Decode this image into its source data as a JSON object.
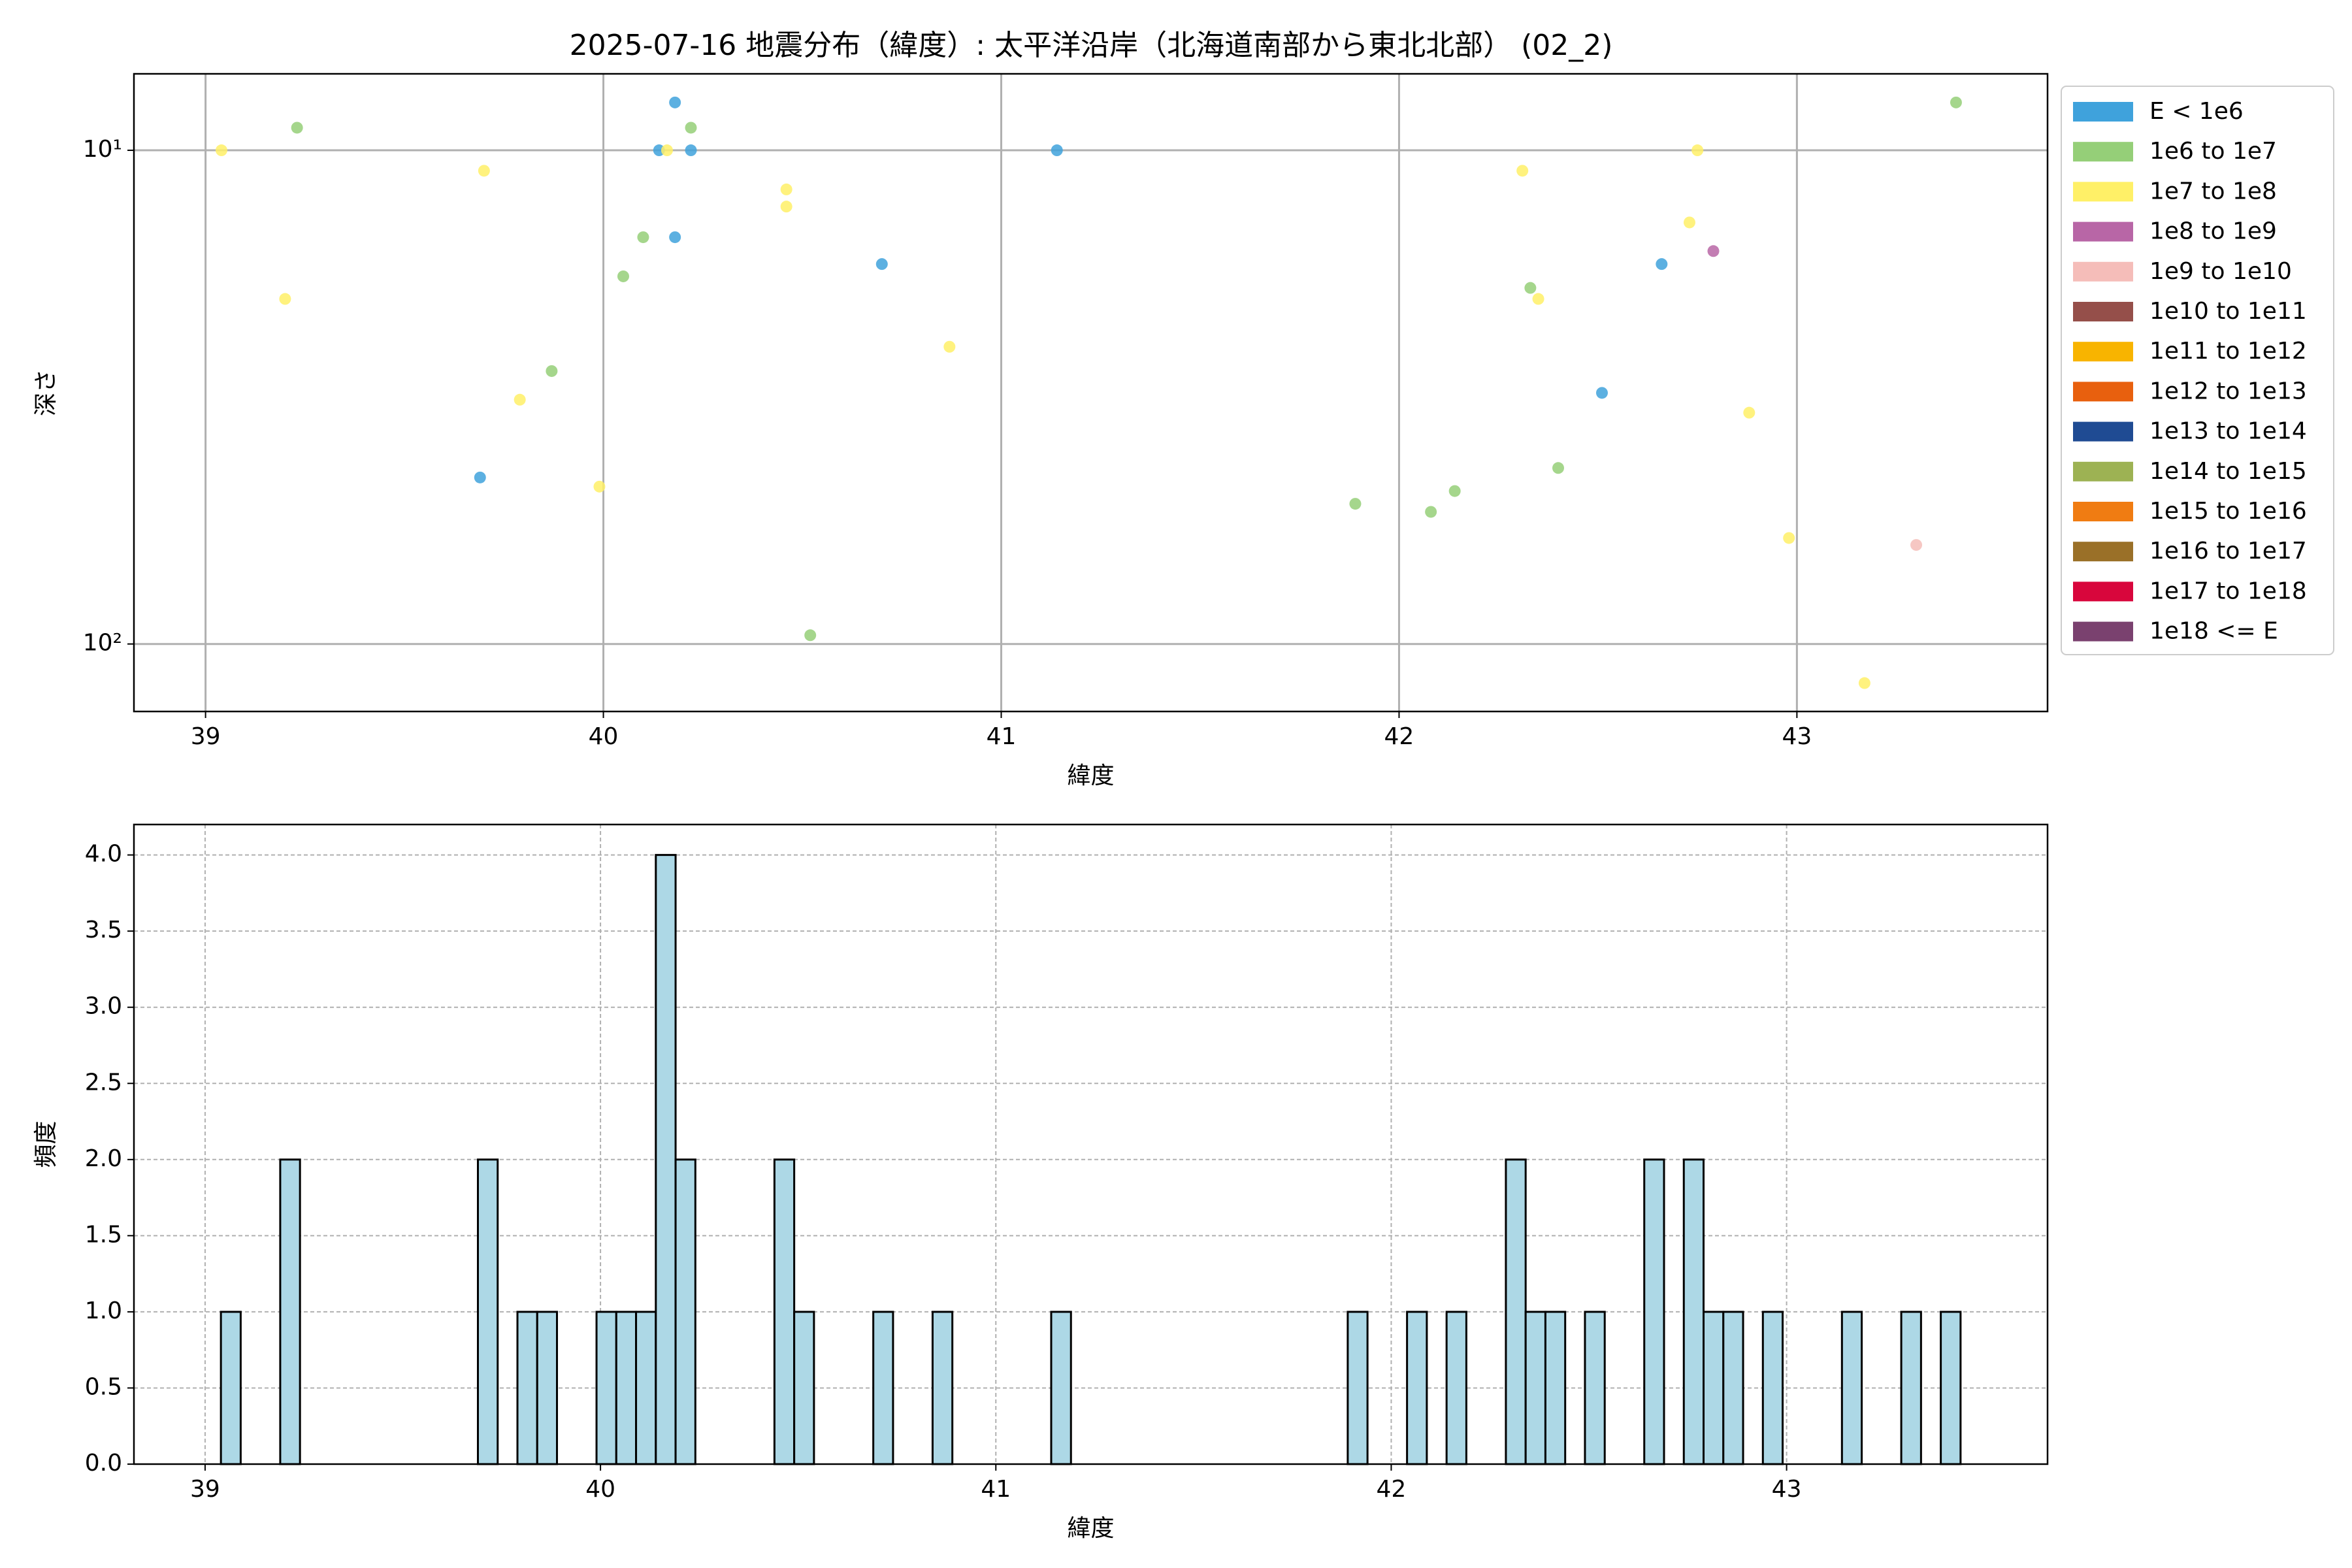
{
  "chart_data": [
    {
      "type": "scatter",
      "title": "2025-07-16 地震分布（緯度）: 太平洋沿岸（北海道南部から東北北部） (02_2)",
      "xlabel": "緯度",
      "ylabel": "深さ",
      "xlim": [
        38.82,
        43.63
      ],
      "xticks": [
        39,
        40,
        41,
        42,
        43
      ],
      "ylim": [
        7,
        137
      ],
      "yticks": [
        {
          "value": 10,
          "label": "10¹"
        },
        {
          "value": 100,
          "label": "10²"
        }
      ],
      "log_y": true,
      "y_inverted": true,
      "grid": true,
      "legend": "outside-right",
      "series": [
        {
          "name": "E < 1e6",
          "color": "#3fa2dc",
          "x": [
            40.18,
            40.14,
            40.22,
            40.18,
            40.7,
            41.14,
            39.69,
            42.66,
            42.51
          ],
          "values": [
            8,
            10,
            10,
            15,
            17,
            10,
            46,
            17,
            31
          ]
        },
        {
          "name": "1e6 to 1e7",
          "color": "#95cf78",
          "x": [
            39.23,
            40.22,
            40.1,
            40.05,
            39.87,
            40.52,
            43.4,
            42.33,
            41.89,
            42.08,
            42.14,
            42.4
          ],
          "values": [
            9,
            9,
            15,
            18,
            28,
            96,
            8,
            19,
            52,
            54,
            49,
            44
          ]
        },
        {
          "name": "1e7 to 1e8",
          "color": "#fff067",
          "x": [
            39.04,
            39.7,
            39.2,
            39.79,
            39.99,
            40.16,
            40.46,
            40.46,
            40.87,
            42.31,
            42.75,
            42.73,
            42.35,
            42.88,
            42.98,
            43.17
          ],
          "values": [
            10,
            11,
            20,
            32,
            48,
            10,
            12,
            13,
            25,
            11,
            10,
            14,
            20,
            34,
            61,
            120
          ]
        },
        {
          "name": "1e8 to 1e9",
          "color": "#b866a6",
          "x": [
            42.79
          ],
          "values": [
            16
          ]
        },
        {
          "name": "1e9 to 1e10",
          "color": "#f5bdb9",
          "x": [
            43.3
          ],
          "values": [
            63
          ]
        },
        {
          "name": "1e10 to 1e11",
          "color": "#954f4a",
          "x": [],
          "values": []
        },
        {
          "name": "1e11 to 1e12",
          "color": "#f8b400",
          "x": [],
          "values": []
        },
        {
          "name": "1e12 to 1e13",
          "color": "#e8600e",
          "x": [],
          "values": []
        },
        {
          "name": "1e13 to 1e14",
          "color": "#1f4b93",
          "x": [],
          "values": []
        },
        {
          "name": "1e14 to 1e15",
          "color": "#9db253",
          "x": [],
          "values": []
        },
        {
          "name": "1e15 to 1e16",
          "color": "#f07c12",
          "x": [],
          "values": []
        },
        {
          "name": "1e16 to 1e17",
          "color": "#9a7028",
          "x": [],
          "values": []
        },
        {
          "name": "1e17 to 1e18",
          "color": "#d8063c",
          "x": [],
          "values": []
        },
        {
          "name": "1e18 <= E",
          "color": "#7a416f",
          "x": [],
          "values": []
        }
      ]
    },
    {
      "type": "histogram",
      "xlabel": "緯度",
      "ylabel": "頻度",
      "color": "#add8e6",
      "edgecolor": "#000000",
      "xlim": [
        38.82,
        43.66
      ],
      "xticks": [
        39,
        40,
        41,
        42,
        43
      ],
      "ylim": [
        0,
        4.2
      ],
      "yticks": [
        {
          "value": 0,
          "label": "0.0"
        },
        {
          "value": 0.5,
          "label": "0.5"
        },
        {
          "value": 1,
          "label": "1.0"
        },
        {
          "value": 1.5,
          "label": "1.5"
        },
        {
          "value": 2,
          "label": "2.0"
        },
        {
          "value": 2.5,
          "label": "2.5"
        },
        {
          "value": 3,
          "label": "3.0"
        },
        {
          "value": 3.5,
          "label": "3.5"
        },
        {
          "value": 4,
          "label": "4.0"
        }
      ],
      "grid": true,
      "bins": [
        39.04,
        39.09,
        39.14,
        39.19,
        39.24,
        39.29,
        39.34,
        39.39,
        39.44,
        39.49,
        39.54,
        39.59,
        39.64,
        39.69,
        39.74,
        39.79,
        39.84,
        39.89,
        39.94,
        39.99,
        40.04,
        40.09,
        40.14,
        40.19,
        40.24,
        40.29,
        40.34,
        40.39,
        40.44,
        40.49,
        40.54,
        40.59,
        40.64,
        40.69,
        40.74,
        40.79,
        40.84,
        40.89,
        40.94,
        40.99,
        41.04,
        41.09,
        41.14,
        41.19,
        41.24,
        41.29,
        41.34,
        41.39,
        41.44,
        41.49,
        41.54,
        41.59,
        41.64,
        41.69,
        41.74,
        41.79,
        41.84,
        41.89,
        41.94,
        41.99,
        42.04,
        42.09,
        42.14,
        42.19,
        42.24,
        42.29,
        42.34,
        42.39,
        42.44,
        42.49,
        42.54,
        42.59,
        42.64,
        42.69,
        42.74,
        42.79,
        42.84,
        42.89,
        42.94,
        42.99,
        43.04,
        43.09,
        43.14,
        43.19,
        43.24,
        43.29,
        43.34,
        43.39,
        43.44
      ],
      "values": [
        1,
        0,
        0,
        2,
        0,
        0,
        0,
        0,
        0,
        0,
        0,
        0,
        0,
        2,
        0,
        1,
        1,
        0,
        0,
        1,
        1,
        1,
        4,
        2,
        0,
        0,
        0,
        0,
        2,
        1,
        0,
        0,
        0,
        1,
        0,
        0,
        1,
        0,
        0,
        0,
        0,
        0,
        1,
        0,
        0,
        0,
        0,
        0,
        0,
        0,
        0,
        0,
        0,
        0,
        0,
        0,
        0,
        1,
        0,
        0,
        1,
        0,
        1,
        0,
        0,
        2,
        1,
        1,
        0,
        1,
        0,
        0,
        2,
        0,
        2,
        1,
        1,
        0,
        1,
        0,
        0,
        0,
        1,
        0,
        0,
        1,
        0,
        1
      ]
    }
  ]
}
